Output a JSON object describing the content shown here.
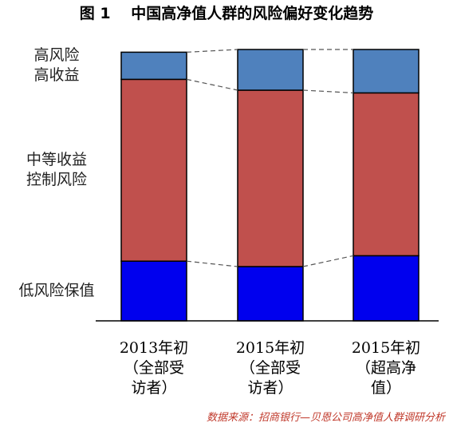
{
  "chart_data": {
    "type": "bar",
    "stacked": true,
    "title": "图 1　 中国高净值人群的风险偏好变化趋势",
    "categories": [
      [
        "2013年初",
        "（全部受",
        "访者）"
      ],
      [
        "2015年初",
        "（全部受",
        "访者）"
      ],
      [
        "2015年初",
        "（超高净",
        "值）"
      ]
    ],
    "series": [
      {
        "name": "低风险保值",
        "label_lines": [
          "低风险保值"
        ],
        "color": "#0000ee",
        "values": [
          22,
          20,
          24
        ]
      },
      {
        "name": "中等收益控制风险",
        "label_lines": [
          "中等收益",
          "控制风险"
        ],
        "color": "#c0504d",
        "values": [
          67,
          65,
          60
        ]
      },
      {
        "name": "高风险高收益",
        "label_lines": [
          "高风险",
          "高收益"
        ],
        "color": "#4f81bd",
        "values": [
          10,
          15,
          16
        ]
      }
    ],
    "ylim": [
      0,
      100
    ],
    "connector_style": "dashed",
    "grid": false,
    "source": "数据来源：招商银行—贝恩公司高净值人群调研分析"
  }
}
